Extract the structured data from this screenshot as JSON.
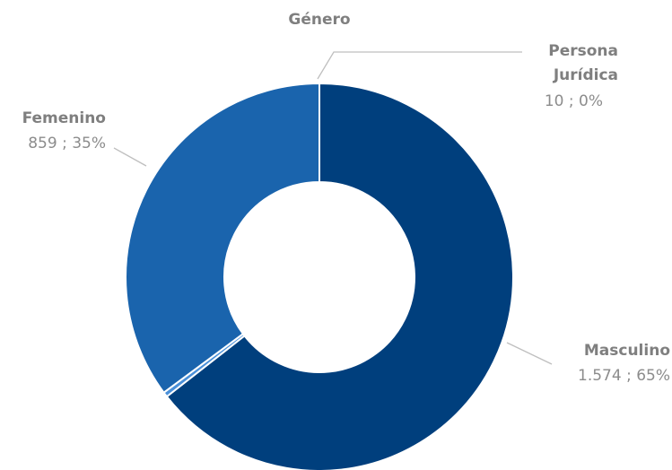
{
  "chart_data": {
    "type": "pie",
    "variant": "donut",
    "title": "Género",
    "legend": "none",
    "slices": [
      {
        "name": "Masculino",
        "value": 1574,
        "value_label": "1.574",
        "percent_label": "65%",
        "color": "#003f7d"
      },
      {
        "name": "Persona Jurídica",
        "value": 10,
        "value_label": "10",
        "percent_label": "0%",
        "color": "#4a90d9"
      },
      {
        "name": "Femenino",
        "value": 859,
        "value_label": "859",
        "percent_label": "35%",
        "color": "#1a64ad"
      }
    ]
  }
}
